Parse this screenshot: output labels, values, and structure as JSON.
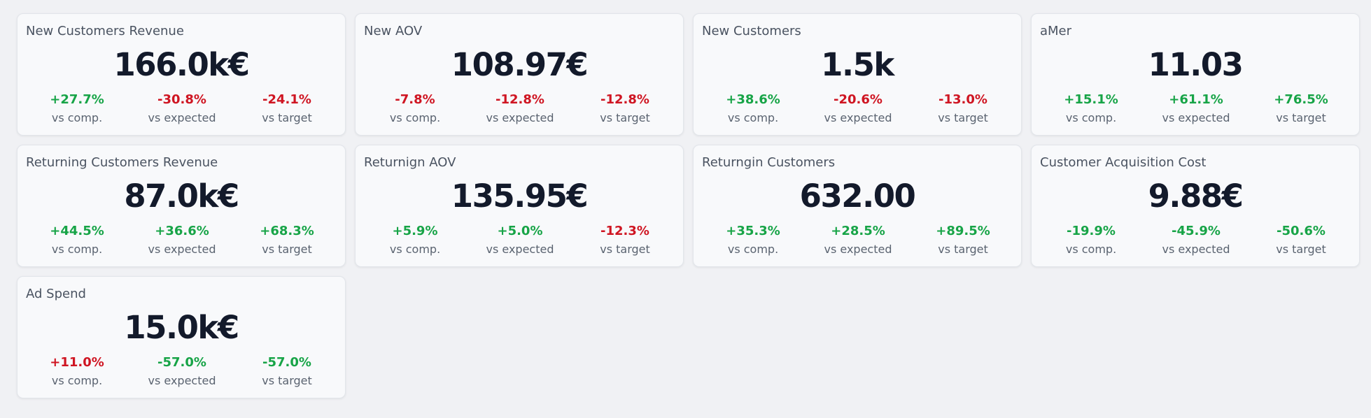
{
  "cards": [
    {
      "title": "New Customers Revenue",
      "value": "166.0k€",
      "metrics": [
        {
          "pct": "+27.7%",
          "label": "vs comp.",
          "trend": "pos"
        },
        {
          "pct": "-30.8%",
          "label": "vs expected",
          "trend": "neg"
        },
        {
          "pct": "-24.1%",
          "label": "vs target",
          "trend": "neg"
        }
      ]
    },
    {
      "title": "New AOV",
      "value": "108.97€",
      "metrics": [
        {
          "pct": "-7.8%",
          "label": "vs comp.",
          "trend": "neg"
        },
        {
          "pct": "-12.8%",
          "label": "vs expected",
          "trend": "neg"
        },
        {
          "pct": "-12.8%",
          "label": "vs target",
          "trend": "neg"
        }
      ]
    },
    {
      "title": "New Customers",
      "value": "1.5k",
      "metrics": [
        {
          "pct": "+38.6%",
          "label": "vs comp.",
          "trend": "pos"
        },
        {
          "pct": "-20.6%",
          "label": "vs expected",
          "trend": "neg"
        },
        {
          "pct": "-13.0%",
          "label": "vs target",
          "trend": "neg"
        }
      ]
    },
    {
      "title": "aMer",
      "value": "11.03",
      "metrics": [
        {
          "pct": "+15.1%",
          "label": "vs comp.",
          "trend": "pos"
        },
        {
          "pct": "+61.1%",
          "label": "vs expected",
          "trend": "pos"
        },
        {
          "pct": "+76.5%",
          "label": "vs target",
          "trend": "pos"
        }
      ]
    },
    {
      "title": "Returning Customers Revenue",
      "value": "87.0k€",
      "metrics": [
        {
          "pct": "+44.5%",
          "label": "vs comp.",
          "trend": "pos"
        },
        {
          "pct": "+36.6%",
          "label": "vs expected",
          "trend": "pos"
        },
        {
          "pct": "+68.3%",
          "label": "vs target",
          "trend": "pos"
        }
      ]
    },
    {
      "title": "Returnign AOV",
      "value": "135.95€",
      "metrics": [
        {
          "pct": "+5.9%",
          "label": "vs comp.",
          "trend": "pos"
        },
        {
          "pct": "+5.0%",
          "label": "vs expected",
          "trend": "pos"
        },
        {
          "pct": "-12.3%",
          "label": "vs target",
          "trend": "neg"
        }
      ]
    },
    {
      "title": "Returngin Customers",
      "value": "632.00",
      "metrics": [
        {
          "pct": "+35.3%",
          "label": "vs comp.",
          "trend": "pos"
        },
        {
          "pct": "+28.5%",
          "label": "vs expected",
          "trend": "pos"
        },
        {
          "pct": "+89.5%",
          "label": "vs target",
          "trend": "pos"
        }
      ]
    },
    {
      "title": "Customer Acquisition Cost",
      "value": "9.88€",
      "metrics": [
        {
          "pct": "-19.9%",
          "label": "vs comp.",
          "trend": "pos"
        },
        {
          "pct": "-45.9%",
          "label": "vs expected",
          "trend": "pos"
        },
        {
          "pct": "-50.6%",
          "label": "vs target",
          "trend": "pos"
        }
      ]
    },
    {
      "title": "Ad Spend",
      "value": "15.0k€",
      "metrics": [
        {
          "pct": "+11.0%",
          "label": "vs comp.",
          "trend": "neg"
        },
        {
          "pct": "-57.0%",
          "label": "vs expected",
          "trend": "pos"
        },
        {
          "pct": "-57.0%",
          "label": "vs target",
          "trend": "pos"
        }
      ]
    }
  ],
  "colors": {
    "positive": "#17a447",
    "negative": "#cf1522",
    "background": "#f0f1f4",
    "card": "#f8f9fb"
  }
}
